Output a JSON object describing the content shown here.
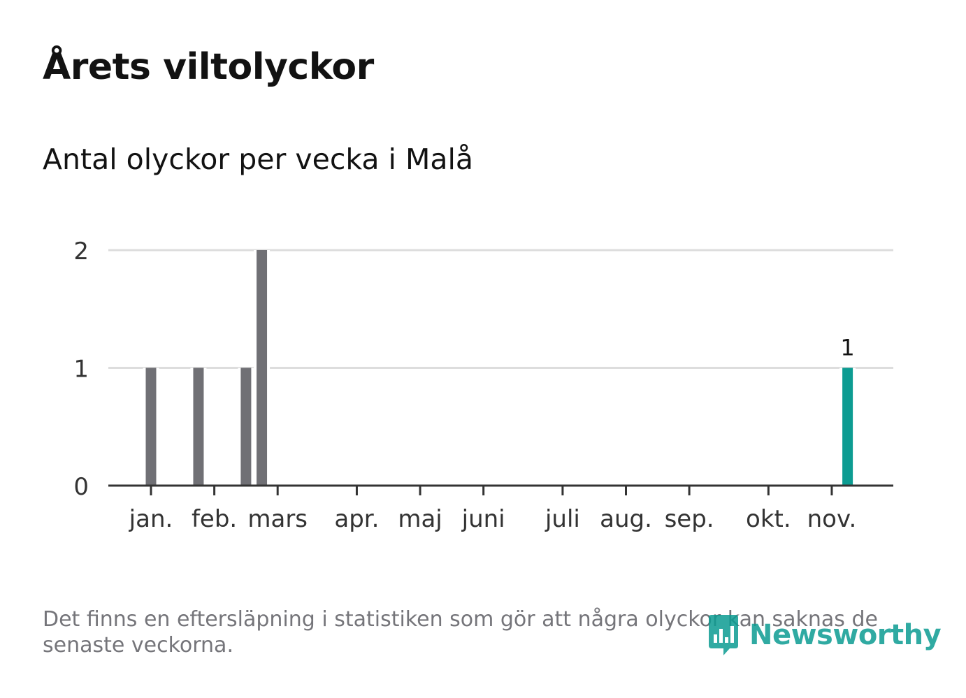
{
  "header": {
    "title": "Årets viltolyckor",
    "subtitle": "Antal olyckor per vecka i Malå"
  },
  "chart_data": {
    "type": "bar",
    "title": "Årets viltolyckor",
    "subtitle": "Antal olyckor per vecka i Malå",
    "xlabel": "",
    "ylabel": "",
    "ylim": [
      0,
      2
    ],
    "yticks": [
      0,
      1,
      2
    ],
    "x_unit": "week",
    "months": [
      {
        "label": "jan.",
        "week": 1
      },
      {
        "label": "feb.",
        "week": 5
      },
      {
        "label": "mars",
        "week": 9
      },
      {
        "label": "apr.",
        "week": 14
      },
      {
        "label": "maj",
        "week": 18
      },
      {
        "label": "juni",
        "week": 22
      },
      {
        "label": "juli",
        "week": 27
      },
      {
        "label": "aug.",
        "week": 31
      },
      {
        "label": "sep.",
        "week": 35
      },
      {
        "label": "okt.",
        "week": 40
      },
      {
        "label": "nov.",
        "week": 44
      }
    ],
    "bars": [
      {
        "week": 1,
        "value": 1,
        "highlight": false
      },
      {
        "week": 4,
        "value": 1,
        "highlight": false
      },
      {
        "week": 7,
        "value": 1,
        "highlight": false
      },
      {
        "week": 8,
        "value": 2,
        "highlight": false
      },
      {
        "week": 45,
        "value": 1,
        "highlight": true,
        "label": "1"
      }
    ],
    "colors": {
      "bar": "#707075",
      "highlight": "#0c9c92",
      "grid": "#dddddd",
      "axis": "#333333",
      "text": "#333333"
    }
  },
  "footer": {
    "note": "Det finns en eftersläpning i statistiken som gör att några olyckor kan saknas de senaste veckorna.",
    "brand": "Newsworthy"
  }
}
